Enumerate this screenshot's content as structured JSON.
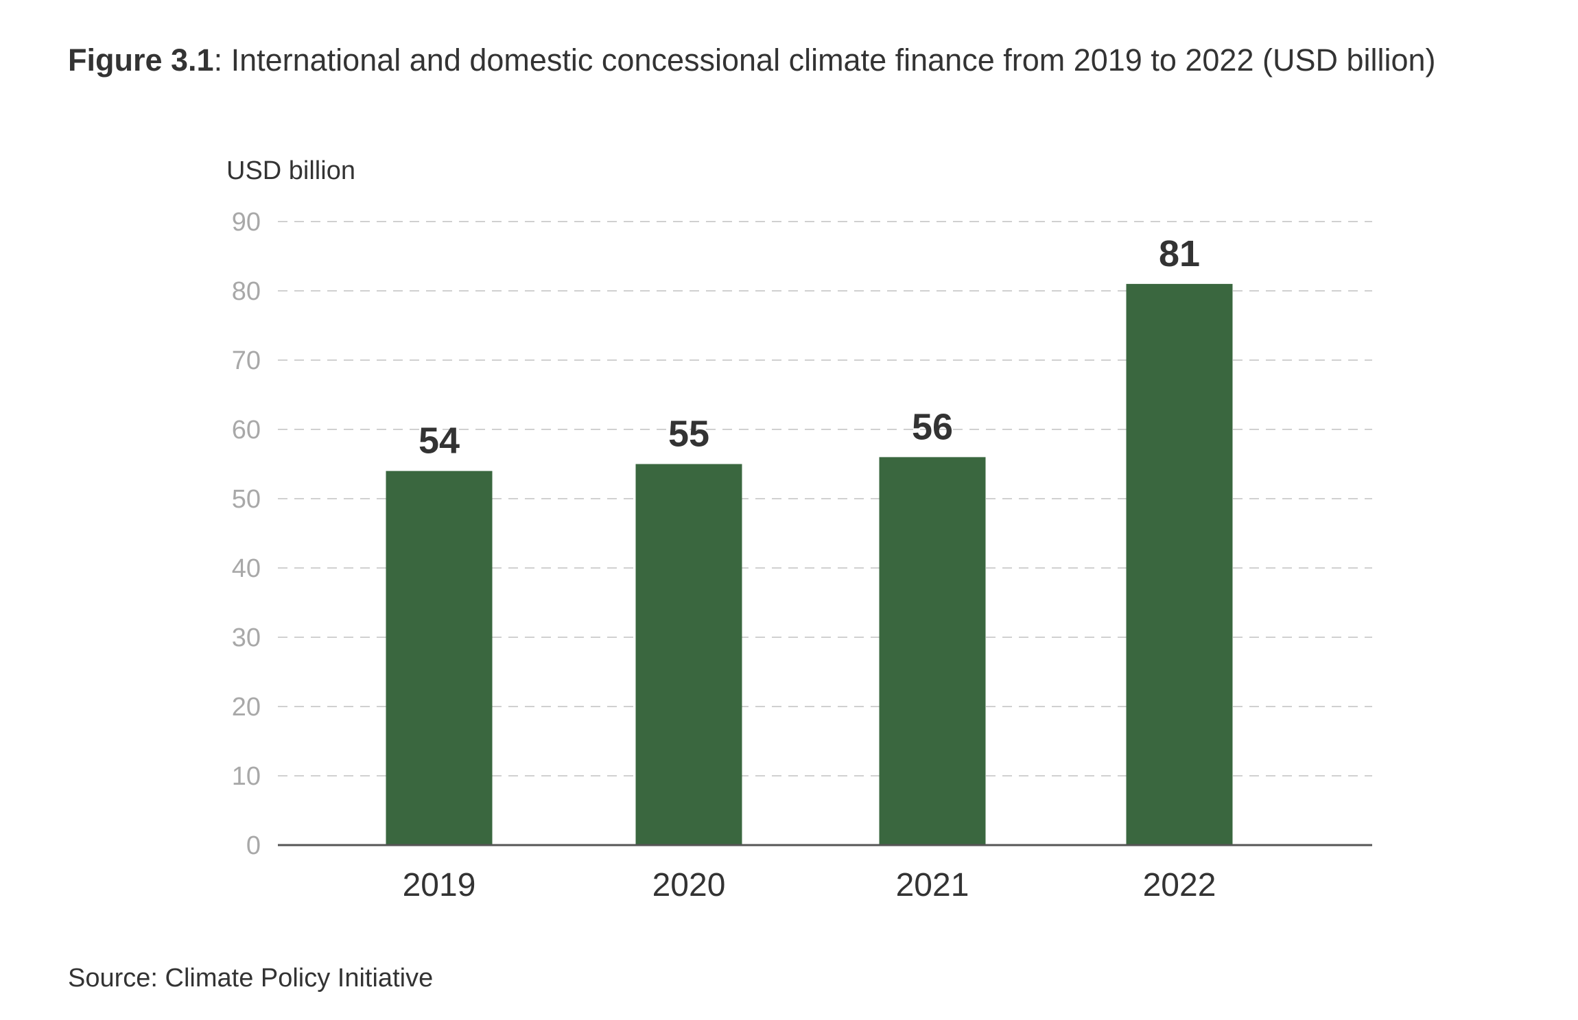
{
  "figure": {
    "label": "Figure 3.1",
    "title": ": International and domestic concessional climate finance from 2019 to 2022 (USD billion)"
  },
  "source": "Source: Climate Policy Initiative",
  "colors": {
    "bar": "#3a673f",
    "gridline": "#d0d0d0",
    "axis": "#555555"
  },
  "chart_data": {
    "type": "bar",
    "title": "",
    "xlabel": "",
    "ylabel": "USD billion",
    "categories": [
      "2019",
      "2020",
      "2021",
      "2022"
    ],
    "values": [
      54,
      55,
      56,
      81
    ],
    "data_labels": [
      "54",
      "55",
      "56",
      "81"
    ],
    "ylim": [
      0,
      90
    ],
    "yticks": [
      0,
      10,
      20,
      30,
      40,
      50,
      60,
      70,
      80,
      90
    ],
    "grid": true,
    "legend": "none"
  }
}
